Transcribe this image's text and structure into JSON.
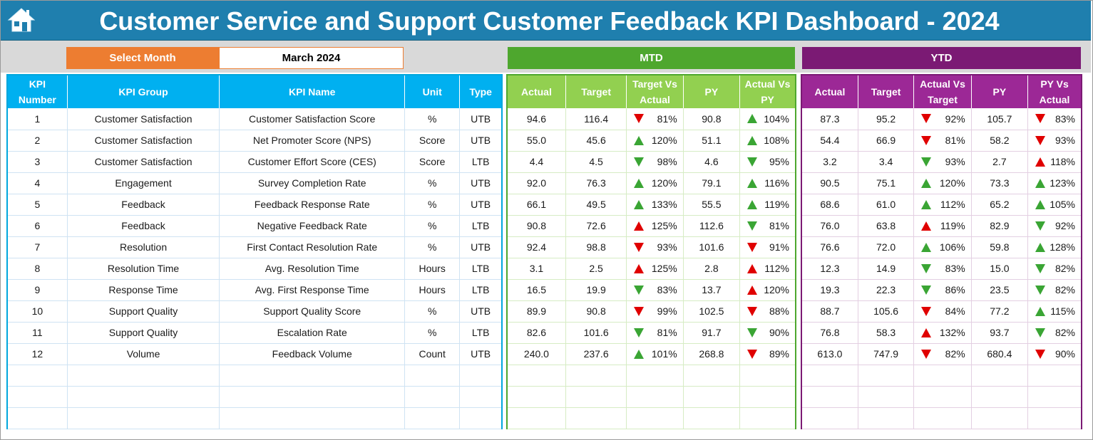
{
  "title": "Customer Service and Support Customer Feedback KPI Dashboard - 2024",
  "icons": {
    "home": "home-icon"
  },
  "selector": {
    "label": "Select Month",
    "value": "March 2024"
  },
  "sections": {
    "mtd": "MTD",
    "ytd": "YTD"
  },
  "colors": {
    "header_blue": "#1f7fae",
    "select_orange": "#ed7d31",
    "mtd_green": "#4ea72e",
    "ytd_purple": "#7b1a74",
    "up_green": "#3aa534",
    "down_red": "#e00000"
  },
  "left_headers": [
    "KPI Number",
    "KPI Group",
    "KPI Name",
    "Unit",
    "Type"
  ],
  "mtd_headers": [
    "Actual",
    "Target",
    "Target Vs Actual",
    "PY",
    "Actual Vs PY"
  ],
  "ytd_headers": [
    "Actual",
    "Target",
    "Actual Vs Target",
    "PY",
    "PY Vs Actual"
  ],
  "rows": [
    {
      "num": "1",
      "group": "Customer Satisfaction",
      "name": "Customer Satisfaction Score",
      "unit": "%",
      "type": "UTB",
      "mtd": {
        "actual": "94.6",
        "target": "116.4",
        "tva": "81%",
        "tva_dir": "down",
        "tva_color": "red",
        "py": "90.8",
        "avp": "104%",
        "avp_dir": "up",
        "avp_color": "green"
      },
      "ytd": {
        "actual": "87.3",
        "target": "95.2",
        "avt": "92%",
        "avt_dir": "down",
        "avt_color": "red",
        "py": "105.7",
        "pva": "83%",
        "pva_dir": "down",
        "pva_color": "red"
      }
    },
    {
      "num": "2",
      "group": "Customer Satisfaction",
      "name": "Net Promoter Score (NPS)",
      "unit": "Score",
      "type": "UTB",
      "mtd": {
        "actual": "55.0",
        "target": "45.6",
        "tva": "120%",
        "tva_dir": "up",
        "tva_color": "green",
        "py": "51.1",
        "avp": "108%",
        "avp_dir": "up",
        "avp_color": "green"
      },
      "ytd": {
        "actual": "54.4",
        "target": "66.9",
        "avt": "81%",
        "avt_dir": "down",
        "avt_color": "red",
        "py": "58.2",
        "pva": "93%",
        "pva_dir": "down",
        "pva_color": "red"
      }
    },
    {
      "num": "3",
      "group": "Customer Satisfaction",
      "name": "Customer Effort Score (CES)",
      "unit": "Score",
      "type": "LTB",
      "mtd": {
        "actual": "4.4",
        "target": "4.5",
        "tva": "98%",
        "tva_dir": "down",
        "tva_color": "green",
        "py": "4.6",
        "avp": "95%",
        "avp_dir": "down",
        "avp_color": "green"
      },
      "ytd": {
        "actual": "3.2",
        "target": "3.4",
        "avt": "93%",
        "avt_dir": "down",
        "avt_color": "green",
        "py": "2.7",
        "pva": "118%",
        "pva_dir": "up",
        "pva_color": "red"
      }
    },
    {
      "num": "4",
      "group": "Engagement",
      "name": "Survey Completion Rate",
      "unit": "%",
      "type": "UTB",
      "mtd": {
        "actual": "92.0",
        "target": "76.3",
        "tva": "120%",
        "tva_dir": "up",
        "tva_color": "green",
        "py": "79.1",
        "avp": "116%",
        "avp_dir": "up",
        "avp_color": "green"
      },
      "ytd": {
        "actual": "90.5",
        "target": "75.1",
        "avt": "120%",
        "avt_dir": "up",
        "avt_color": "green",
        "py": "73.3",
        "pva": "123%",
        "pva_dir": "up",
        "pva_color": "green"
      }
    },
    {
      "num": "5",
      "group": "Feedback",
      "name": "Feedback Response Rate",
      "unit": "%",
      "type": "UTB",
      "mtd": {
        "actual": "66.1",
        "target": "49.5",
        "tva": "133%",
        "tva_dir": "up",
        "tva_color": "green",
        "py": "55.5",
        "avp": "119%",
        "avp_dir": "up",
        "avp_color": "green"
      },
      "ytd": {
        "actual": "68.6",
        "target": "61.0",
        "avt": "112%",
        "avt_dir": "up",
        "avt_color": "green",
        "py": "65.2",
        "pva": "105%",
        "pva_dir": "up",
        "pva_color": "green"
      }
    },
    {
      "num": "6",
      "group": "Feedback",
      "name": "Negative Feedback Rate",
      "unit": "%",
      "type": "LTB",
      "mtd": {
        "actual": "90.8",
        "target": "72.6",
        "tva": "125%",
        "tva_dir": "up",
        "tva_color": "red",
        "py": "112.6",
        "avp": "81%",
        "avp_dir": "down",
        "avp_color": "green"
      },
      "ytd": {
        "actual": "76.0",
        "target": "63.8",
        "avt": "119%",
        "avt_dir": "up",
        "avt_color": "red",
        "py": "82.9",
        "pva": "92%",
        "pva_dir": "down",
        "pva_color": "green"
      }
    },
    {
      "num": "7",
      "group": "Resolution",
      "name": "First Contact Resolution Rate",
      "unit": "%",
      "type": "UTB",
      "mtd": {
        "actual": "92.4",
        "target": "98.8",
        "tva": "93%",
        "tva_dir": "down",
        "tva_color": "red",
        "py": "101.6",
        "avp": "91%",
        "avp_dir": "down",
        "avp_color": "red"
      },
      "ytd": {
        "actual": "76.6",
        "target": "72.0",
        "avt": "106%",
        "avt_dir": "up",
        "avt_color": "green",
        "py": "59.8",
        "pva": "128%",
        "pva_dir": "up",
        "pva_color": "green"
      }
    },
    {
      "num": "8",
      "group": "Resolution Time",
      "name": "Avg. Resolution Time",
      "unit": "Hours",
      "type": "LTB",
      "mtd": {
        "actual": "3.1",
        "target": "2.5",
        "tva": "125%",
        "tva_dir": "up",
        "tva_color": "red",
        "py": "2.8",
        "avp": "112%",
        "avp_dir": "up",
        "avp_color": "red"
      },
      "ytd": {
        "actual": "12.3",
        "target": "14.9",
        "avt": "83%",
        "avt_dir": "down",
        "avt_color": "green",
        "py": "15.0",
        "pva": "82%",
        "pva_dir": "down",
        "pva_color": "green"
      }
    },
    {
      "num": "9",
      "group": "Response Time",
      "name": "Avg. First Response Time",
      "unit": "Hours",
      "type": "LTB",
      "mtd": {
        "actual": "16.5",
        "target": "19.9",
        "tva": "83%",
        "tva_dir": "down",
        "tva_color": "green",
        "py": "13.7",
        "avp": "120%",
        "avp_dir": "up",
        "avp_color": "red"
      },
      "ytd": {
        "actual": "19.3",
        "target": "22.3",
        "avt": "86%",
        "avt_dir": "down",
        "avt_color": "green",
        "py": "23.5",
        "pva": "82%",
        "pva_dir": "down",
        "pva_color": "green"
      }
    },
    {
      "num": "10",
      "group": "Support Quality",
      "name": "Support Quality Score",
      "unit": "%",
      "type": "UTB",
      "mtd": {
        "actual": "89.9",
        "target": "90.8",
        "tva": "99%",
        "tva_dir": "down",
        "tva_color": "red",
        "py": "102.5",
        "avp": "88%",
        "avp_dir": "down",
        "avp_color": "red"
      },
      "ytd": {
        "actual": "88.7",
        "target": "105.6",
        "avt": "84%",
        "avt_dir": "down",
        "avt_color": "red",
        "py": "77.2",
        "pva": "115%",
        "pva_dir": "up",
        "pva_color": "green"
      }
    },
    {
      "num": "11",
      "group": "Support Quality",
      "name": "Escalation Rate",
      "unit": "%",
      "type": "LTB",
      "mtd": {
        "actual": "82.6",
        "target": "101.6",
        "tva": "81%",
        "tva_dir": "down",
        "tva_color": "green",
        "py": "91.7",
        "avp": "90%",
        "avp_dir": "down",
        "avp_color": "green"
      },
      "ytd": {
        "actual": "76.8",
        "target": "58.3",
        "avt": "132%",
        "avt_dir": "up",
        "avt_color": "red",
        "py": "93.7",
        "pva": "82%",
        "pva_dir": "down",
        "pva_color": "green"
      }
    },
    {
      "num": "12",
      "group": "Volume",
      "name": "Feedback Volume",
      "unit": "Count",
      "type": "UTB",
      "mtd": {
        "actual": "240.0",
        "target": "237.6",
        "tva": "101%",
        "tva_dir": "up",
        "tva_color": "green",
        "py": "268.8",
        "avp": "89%",
        "avp_dir": "down",
        "avp_color": "red"
      },
      "ytd": {
        "actual": "613.0",
        "target": "747.9",
        "avt": "82%",
        "avt_dir": "down",
        "avt_color": "red",
        "py": "680.4",
        "pva": "90%",
        "pva_dir": "down",
        "pva_color": "red"
      }
    }
  ]
}
